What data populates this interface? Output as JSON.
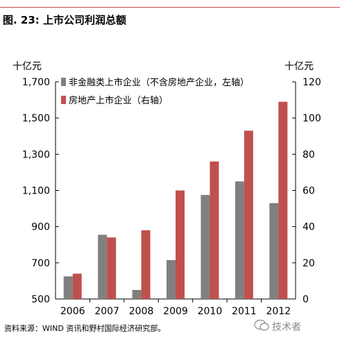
{
  "figure_title": "图. 23: 上市公司利润总额",
  "source_note": "资料来源：WIND 资讯和野村国际经济研究部。",
  "watermark_text": "技术者",
  "colors": {
    "non_financial": "#808080",
    "real_estate": "#c0504d",
    "accent": "#c0504d"
  },
  "chart_data": {
    "type": "bar",
    "title": "图. 23: 上市公司利润总额",
    "categories": [
      "2006",
      "2007",
      "2008",
      "2009",
      "2010",
      "2011",
      "2012"
    ],
    "series": [
      {
        "name": "非金融类上市企业（不含房地产企业，左轴）",
        "axis": "left",
        "color": "#808080",
        "values": [
          625,
          855,
          550,
          715,
          1075,
          1150,
          1030
        ]
      },
      {
        "name": "房地产上市企业（右轴）",
        "axis": "right",
        "color": "#c0504d",
        "values": [
          14,
          34,
          38,
          60,
          76,
          93,
          109
        ]
      }
    ],
    "left_axis": {
      "unit_label": "十亿元",
      "ylim": [
        500,
        1700
      ],
      "ticks": [
        500,
        700,
        900,
        1100,
        1300,
        1500,
        1700
      ],
      "tick_labels": [
        "500",
        "700",
        "900",
        "1,100",
        "1,300",
        "1,500",
        "1,700"
      ]
    },
    "right_axis": {
      "unit_label": "十亿元",
      "ylim": [
        0,
        120
      ],
      "ticks": [
        0,
        20,
        40,
        60,
        80,
        100,
        120
      ],
      "tick_labels": [
        "0",
        "20",
        "40",
        "60",
        "80",
        "100",
        "120"
      ]
    },
    "grid": false,
    "legend_position": "top-left"
  }
}
